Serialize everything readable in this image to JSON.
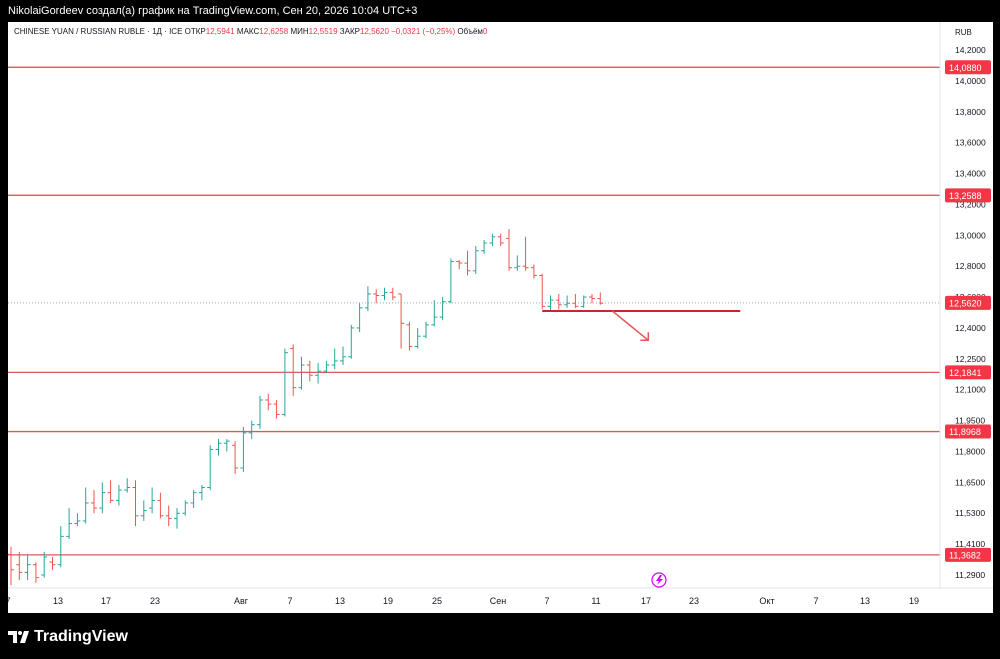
{
  "header": {
    "caption": "NikolaiGordeev создал(а) график на TradingView.com, Сен 20, 2026 10:04 UTC+3"
  },
  "legend": {
    "symbol": "CHINESE YUAN / RUSSIAN RUBLE · 1Д · ICE",
    "open_label": "ОТКР",
    "open": "12,5941",
    "high_label": "МАКС",
    "high": "12,6258",
    "low_label": "МИН",
    "low": "12,5519",
    "close_label": "ЗАКР",
    "close": "12,5620",
    "change": "−0,0321 (−0,25%)",
    "volume_label": "Объём",
    "volume": "0"
  },
  "footer": {
    "brand": "TradingView"
  },
  "colors": {
    "up": "#26a69a",
    "down": "#ef5350",
    "level": "#e0565b",
    "axis_text": "#131722",
    "price_bg": "#f23645"
  },
  "chart_data": {
    "type": "ohlc",
    "currency_label": "RUB",
    "y_axis_ticks": [
      "14,2000",
      "14,0000",
      "13,8000",
      "13,6000",
      "13,4000",
      "13,2000",
      "13,0000",
      "12,8000",
      "12,6000",
      "12,4000",
      "12,2500",
      "12,1000",
      "11,9500",
      "11,8000",
      "11,6500",
      "11,5300",
      "11,4100",
      "11,2900"
    ],
    "x_axis_ticks": [
      "7",
      "13",
      "17",
      "23",
      "Авг",
      "7",
      "13",
      "19",
      "25",
      "Сен",
      "7",
      "11",
      "17",
      "23",
      "Окт",
      "7",
      "13",
      "19"
    ],
    "horizontal_levels": [
      {
        "label": "14,0880"
      },
      {
        "label": "13,2588"
      },
      {
        "label": "12,1841"
      },
      {
        "label": "11,8968"
      },
      {
        "label": "11,3682"
      }
    ],
    "last_price": {
      "label": "12,5620",
      "value": 12.562
    },
    "projection": {
      "from_level": 12.51,
      "arrow_target": 12.34,
      "direction": "down"
    },
    "bars": [
      [
        11.37,
        11.4,
        11.25,
        11.31
      ],
      [
        11.33,
        11.38,
        11.27,
        11.3
      ],
      [
        11.3,
        11.37,
        11.27,
        11.33
      ],
      [
        11.33,
        11.34,
        11.26,
        11.28
      ],
      [
        11.29,
        11.38,
        11.28,
        11.36
      ],
      [
        11.34,
        11.36,
        11.31,
        11.33
      ],
      [
        11.33,
        11.48,
        11.32,
        11.44
      ],
      [
        11.44,
        11.55,
        11.43,
        11.49
      ],
      [
        11.49,
        11.53,
        11.48,
        11.5
      ],
      [
        11.5,
        11.63,
        11.49,
        11.57
      ],
      [
        11.57,
        11.62,
        11.53,
        11.55
      ],
      [
        11.55,
        11.65,
        11.53,
        11.61
      ],
      [
        11.61,
        11.66,
        11.57,
        11.58
      ],
      [
        11.58,
        11.64,
        11.56,
        11.62
      ],
      [
        11.62,
        11.67,
        11.61,
        11.63
      ],
      [
        11.63,
        11.66,
        11.48,
        11.52
      ],
      [
        11.52,
        11.58,
        11.5,
        11.54
      ],
      [
        11.55,
        11.63,
        11.53,
        11.58
      ],
      [
        11.58,
        11.61,
        11.51,
        11.52
      ],
      [
        11.52,
        11.56,
        11.48,
        11.51
      ],
      [
        11.51,
        11.55,
        11.47,
        11.53
      ],
      [
        11.53,
        11.58,
        11.52,
        11.57
      ],
      [
        11.57,
        11.62,
        11.55,
        11.61
      ],
      [
        11.61,
        11.64,
        11.58,
        11.63
      ],
      [
        11.63,
        11.83,
        11.62,
        11.81
      ],
      [
        11.81,
        11.86,
        11.78,
        11.84
      ],
      [
        11.84,
        11.86,
        11.8,
        11.85
      ],
      [
        11.83,
        11.85,
        11.69,
        11.72
      ],
      [
        11.72,
        11.92,
        11.7,
        11.89
      ],
      [
        11.89,
        11.95,
        11.86,
        11.93
      ],
      [
        11.93,
        12.07,
        11.91,
        12.05
      ],
      [
        12.05,
        12.08,
        12.0,
        12.03
      ],
      [
        12.03,
        12.05,
        11.96,
        11.98
      ],
      [
        11.98,
        12.3,
        11.97,
        12.28
      ],
      [
        12.3,
        12.32,
        12.07,
        12.11
      ],
      [
        12.11,
        12.26,
        12.1,
        12.22
      ],
      [
        12.22,
        12.24,
        12.14,
        12.17
      ],
      [
        12.17,
        12.23,
        12.13,
        12.19
      ],
      [
        12.19,
        12.24,
        12.18,
        12.22
      ],
      [
        12.22,
        12.3,
        12.2,
        12.24
      ],
      [
        12.24,
        12.31,
        12.22,
        12.26
      ],
      [
        12.26,
        12.42,
        12.25,
        12.4
      ],
      [
        12.4,
        12.56,
        12.38,
        12.53
      ],
      [
        12.53,
        12.67,
        12.51,
        12.62
      ],
      [
        12.62,
        12.65,
        12.56,
        12.61
      ],
      [
        12.61,
        12.66,
        12.58,
        12.63
      ],
      [
        12.63,
        12.66,
        12.58,
        12.6
      ],
      [
        12.62,
        12.62,
        12.3,
        12.43
      ],
      [
        12.42,
        12.44,
        12.29,
        12.31
      ],
      [
        12.31,
        12.4,
        12.3,
        12.36
      ],
      [
        12.36,
        12.44,
        12.35,
        12.42
      ],
      [
        12.42,
        12.58,
        12.41,
        12.47
      ],
      [
        12.47,
        12.6,
        12.45,
        12.57
      ],
      [
        12.57,
        12.85,
        12.56,
        12.83
      ],
      [
        12.83,
        12.84,
        12.78,
        12.82
      ],
      [
        12.82,
        12.9,
        12.74,
        12.77
      ],
      [
        12.77,
        12.93,
        12.75,
        12.9
      ],
      [
        12.9,
        12.97,
        12.88,
        12.95
      ],
      [
        12.95,
        13.01,
        12.93,
        12.99
      ],
      [
        12.99,
        13.01,
        12.93,
        12.95
      ],
      [
        12.98,
        13.04,
        12.77,
        12.79
      ],
      [
        12.79,
        12.87,
        12.77,
        12.8
      ],
      [
        12.8,
        12.99,
        12.77,
        12.79
      ],
      [
        12.79,
        12.81,
        12.72,
        12.74
      ],
      [
        12.74,
        12.75,
        12.52,
        12.54
      ],
      [
        12.54,
        12.61,
        12.51,
        12.58
      ],
      [
        12.58,
        12.62,
        12.52,
        12.55
      ],
      [
        12.55,
        12.61,
        12.53,
        12.56
      ],
      [
        12.56,
        12.62,
        12.53,
        12.54
      ],
      [
        12.54,
        12.61,
        12.53,
        12.6
      ],
      [
        12.6,
        12.62,
        12.56,
        12.59
      ],
      [
        12.59,
        12.63,
        12.55,
        12.56
      ]
    ]
  }
}
